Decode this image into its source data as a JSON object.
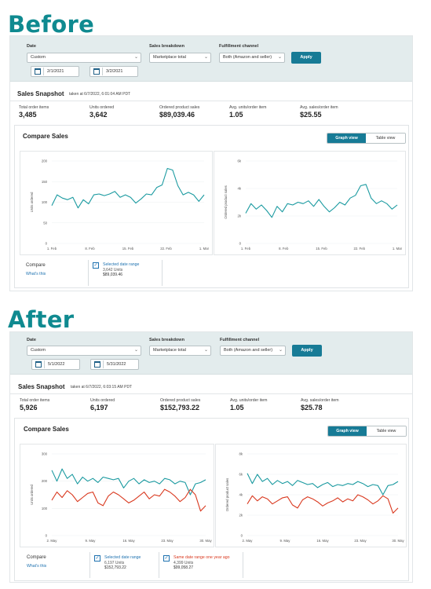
{
  "before": {
    "heading": "Before",
    "filters": {
      "date_label": "Date",
      "date_value": "Custom",
      "breakdown_label": "Sales breakdown",
      "breakdown_value": "Marketplace total",
      "channel_label": "Fulfillment channel",
      "channel_value": "Both (Amazon and seller)",
      "start_date": "2/1/2021",
      "end_date": "3/2/2021",
      "apply_label": "Apply"
    },
    "snapshot": {
      "title": "Sales Snapshot",
      "taken": "taken at 6/7/2022, 6:01:04 AM PDT",
      "metrics": [
        {
          "label": "Total order items",
          "value": "3,485"
        },
        {
          "label": "Units ordered",
          "value": "3,642"
        },
        {
          "label": "Ordered product sales",
          "value": "$89,039.46"
        },
        {
          "label": "Avg. units/order item",
          "value": "1.05"
        },
        {
          "label": "Avg. sales/order item",
          "value": "$25.55"
        }
      ]
    },
    "compare": {
      "title": "Compare Sales",
      "graph_view": "Graph view",
      "table_view": "Table view",
      "compare_label": "Compare",
      "whats_this": "What's this",
      "legend": [
        {
          "title": "Selected date range",
          "units": "3,642 Units",
          "sales": "$89,039.46",
          "color": "#1e72b0"
        }
      ]
    }
  },
  "after": {
    "heading": "After",
    "filters": {
      "date_label": "Date",
      "date_value": "Custom",
      "breakdown_label": "Sales breakdown",
      "breakdown_value": "Marketplace total",
      "channel_label": "Fulfillment channel",
      "channel_value": "Both (Amazon and seller)",
      "start_date": "5/1/2022",
      "end_date": "5/31/2022",
      "apply_label": "Apply"
    },
    "snapshot": {
      "title": "Sales Snapshot",
      "taken": "taken at 6/7/2022, 6:03:15 AM PDT",
      "metrics": [
        {
          "label": "Total order items",
          "value": "5,926"
        },
        {
          "label": "Units ordered",
          "value": "6,197"
        },
        {
          "label": "Ordered product sales",
          "value": "$152,793.22"
        },
        {
          "label": "Avg. units/order item",
          "value": "1.05"
        },
        {
          "label": "Avg. sales/order item",
          "value": "$25.78"
        }
      ]
    },
    "compare": {
      "title": "Compare Sales",
      "graph_view": "Graph view",
      "table_view": "Table view",
      "compare_label": "Compare",
      "whats_this": "What's this",
      "legend": [
        {
          "title": "Selected date range",
          "units": "6,197 Units",
          "sales": "$152,793.22",
          "color": "#1e72b0"
        },
        {
          "title": "Same date range one year ago",
          "units": "4,399 Units",
          "sales": "$99,058.27",
          "color": "#d9381e"
        }
      ]
    }
  },
  "chart_data": [
    {
      "type": "line",
      "ylabel": "Units ordered",
      "x_ticks": [
        "1. Feb",
        "8. Feb",
        "15. Feb",
        "22. Feb",
        "1. Mar"
      ],
      "y_ticks": [
        "0",
        "50",
        "100",
        "150",
        "200"
      ],
      "ylim": [
        0,
        200
      ],
      "series": [
        {
          "color": "#1a9aa0",
          "values": [
            92,
            118,
            110,
            106,
            112,
            86,
            106,
            96,
            118,
            120,
            116,
            120,
            126,
            112,
            118,
            112,
            98,
            108,
            120,
            118,
            136,
            142,
            182,
            178,
            140,
            118,
            124,
            118,
            102,
            118
          ]
        }
      ]
    },
    {
      "type": "line",
      "ylabel": "Ordered product sales",
      "x_ticks": [
        "1. Feb",
        "8. Feb",
        "15. Feb",
        "22. Feb",
        "1. Mar"
      ],
      "y_ticks": [
        "0",
        "2k",
        "4k",
        "6k"
      ],
      "ylim": [
        0,
        6000
      ],
      "series": [
        {
          "color": "#1a9aa0",
          "values": [
            2200,
            2900,
            2500,
            2800,
            2400,
            1900,
            2700,
            2300,
            2900,
            2800,
            3000,
            2900,
            3100,
            2700,
            3200,
            2700,
            2300,
            2600,
            3000,
            2800,
            3300,
            3500,
            4200,
            4300,
            3300,
            2900,
            3100,
            2900,
            2500,
            2800
          ]
        }
      ]
    },
    {
      "type": "line",
      "ylabel": "Units ordered",
      "x_ticks": [
        "2. May",
        "9. May",
        "16. May",
        "23. May",
        "30. May"
      ],
      "y_ticks": [
        "0",
        "100",
        "200",
        "300"
      ],
      "ylim": [
        0,
        300
      ],
      "series": [
        {
          "color": "#1a9aa0",
          "values": [
            240,
            200,
            245,
            210,
            225,
            190,
            215,
            200,
            210,
            195,
            215,
            210,
            205,
            210,
            175,
            200,
            210,
            190,
            205,
            195,
            200,
            190,
            210,
            205,
            190,
            200,
            195,
            150,
            190,
            195,
            205
          ]
        },
        {
          "color": "#d9381e",
          "values": [
            130,
            160,
            140,
            165,
            150,
            125,
            140,
            155,
            160,
            120,
            110,
            145,
            160,
            150,
            135,
            120,
            130,
            145,
            160,
            135,
            150,
            145,
            170,
            160,
            145,
            125,
            140,
            170,
            150,
            90,
            110
          ]
        }
      ]
    },
    {
      "type": "line",
      "ylabel": "Ordered product sales",
      "x_ticks": [
        "2. May",
        "9. May",
        "16. May",
        "23. May",
        "30. May"
      ],
      "y_ticks": [
        "0",
        "2k",
        "4k",
        "6k",
        "8k"
      ],
      "ylim": [
        0,
        8000
      ],
      "series": [
        {
          "color": "#1a9aa0",
          "values": [
            6100,
            5100,
            6000,
            5300,
            5600,
            5000,
            5400,
            5100,
            5300,
            4900,
            5400,
            5200,
            5000,
            5100,
            4700,
            5000,
            5200,
            4800,
            5000,
            4900,
            5100,
            5000,
            5300,
            5100,
            4800,
            5000,
            4900,
            4000,
            4900,
            5000,
            5300
          ]
        },
        {
          "color": "#d9381e",
          "values": [
            3100,
            3900,
            3400,
            3800,
            3600,
            3100,
            3400,
            3700,
            3800,
            3000,
            2700,
            3500,
            3800,
            3600,
            3300,
            2900,
            3200,
            3400,
            3700,
            3300,
            3600,
            3400,
            4000,
            3800,
            3500,
            3100,
            3400,
            3900,
            3600,
            2200,
            2700
          ]
        }
      ]
    }
  ]
}
